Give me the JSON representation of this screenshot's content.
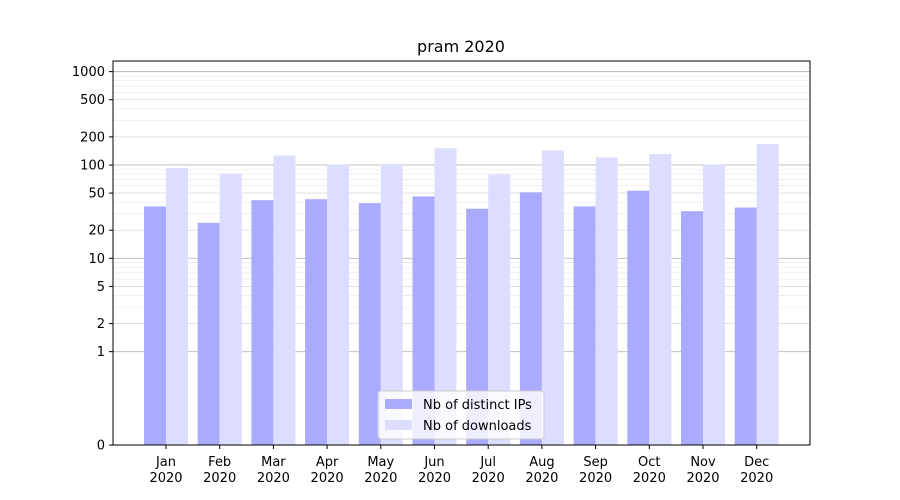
{
  "chart_data": {
    "type": "bar",
    "title": "pram 2020",
    "xlabel": "",
    "ylabel": "",
    "yscale": "symlog",
    "ylim": [
      0,
      1300
    ],
    "yticks": [
      0,
      1,
      2,
      5,
      10,
      20,
      50,
      100,
      200,
      500,
      1000
    ],
    "ytick_labels": [
      "0",
      "1",
      "2",
      "5",
      "10",
      "20",
      "50",
      "100",
      "200",
      "500",
      "1000"
    ],
    "grid": true,
    "legend_position": "bottom-center",
    "categories": [
      {
        "month": "Jan",
        "year": "2020"
      },
      {
        "month": "Feb",
        "year": "2020"
      },
      {
        "month": "Mar",
        "year": "2020"
      },
      {
        "month": "Apr",
        "year": "2020"
      },
      {
        "month": "May",
        "year": "2020"
      },
      {
        "month": "Jun",
        "year": "2020"
      },
      {
        "month": "Jul",
        "year": "2020"
      },
      {
        "month": "Aug",
        "year": "2020"
      },
      {
        "month": "Sep",
        "year": "2020"
      },
      {
        "month": "Oct",
        "year": "2020"
      },
      {
        "month": "Nov",
        "year": "2020"
      },
      {
        "month": "Dec",
        "year": "2020"
      }
    ],
    "series": [
      {
        "name": "Nb of distinct IPs",
        "color": "#aaaaff",
        "values": [
          36,
          24,
          42,
          43,
          39,
          46,
          34,
          51,
          36,
          53,
          32,
          35
        ]
      },
      {
        "name": "Nb of downloads",
        "color": "#ddddff",
        "values": [
          93,
          81,
          126,
          101,
          103,
          151,
          79,
          143,
          121,
          131,
          101,
          168
        ]
      }
    ]
  }
}
